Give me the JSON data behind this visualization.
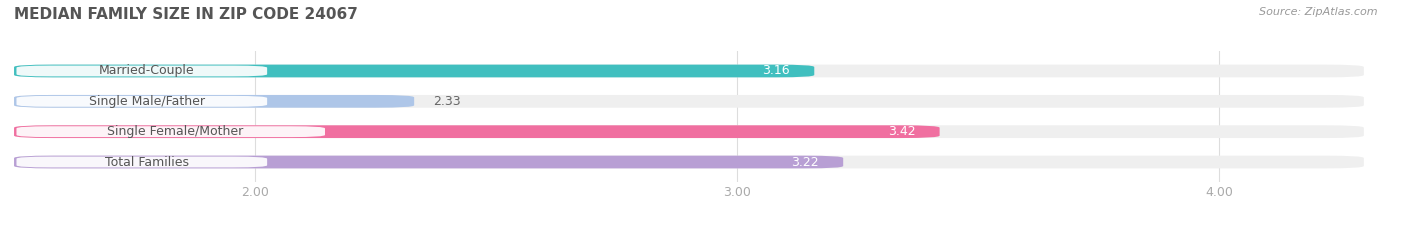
{
  "title": "MEDIAN FAMILY SIZE IN ZIP CODE 24067",
  "source": "Source: ZipAtlas.com",
  "categories": [
    "Married-Couple",
    "Single Male/Father",
    "Single Female/Mother",
    "Total Families"
  ],
  "values": [
    3.16,
    2.33,
    3.42,
    3.22
  ],
  "bar_colors": [
    "#40bfbf",
    "#aec6e8",
    "#f06fa0",
    "#b89fd4"
  ],
  "bar_bg_color": "#efefef",
  "xlim": [
    1.5,
    4.3
  ],
  "xticks": [
    2.0,
    3.0,
    4.0
  ],
  "xtick_labels": [
    "2.00",
    "3.00",
    "4.00"
  ],
  "background_color": "#ffffff",
  "title_fontsize": 11,
  "label_fontsize": 9,
  "value_fontsize": 9,
  "bar_height": 0.42,
  "label_text_color": "#555555",
  "value_inside_color": "#ffffff",
  "value_outside_color": "#666666",
  "grid_color": "#dddddd",
  "source_color": "#999999",
  "tick_color": "#aaaaaa"
}
